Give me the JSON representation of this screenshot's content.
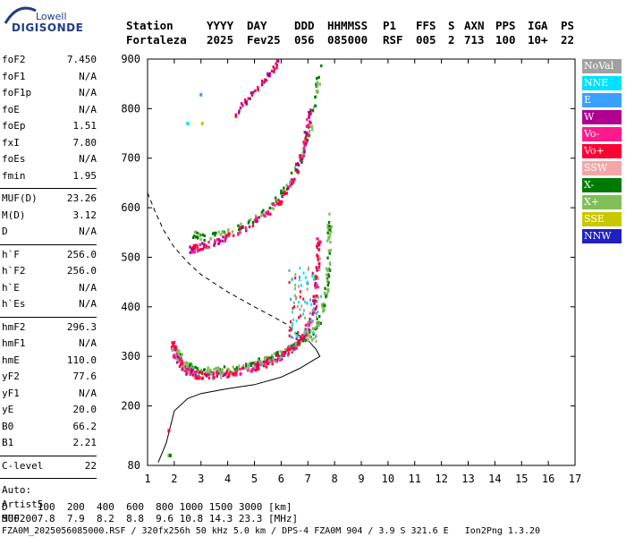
{
  "logo": {
    "brand_top": "Lowell",
    "brand_main": "DIGISONDE"
  },
  "header": {
    "labels": [
      "Station",
      "YYYY",
      "DAY",
      "DDD",
      "HHMMSS",
      "P1",
      "FFS",
      "S",
      "AXN",
      "PPS",
      "IGA",
      "PS"
    ],
    "values": [
      "Fortaleza",
      "2025",
      "Fev25",
      "056",
      "085000",
      "RSF",
      "005",
      "2",
      "713",
      "100",
      "10+",
      "22"
    ]
  },
  "params": {
    "group1": [
      {
        "label": "foF2",
        "value": "7.450"
      },
      {
        "label": "foF1",
        "value": "N/A"
      },
      {
        "label": "foF1p",
        "value": "N/A"
      },
      {
        "label": "foE",
        "value": "N/A"
      },
      {
        "label": "foEp",
        "value": "1.51"
      },
      {
        "label": "fxI",
        "value": "7.80"
      },
      {
        "label": "foEs",
        "value": "N/A"
      },
      {
        "label": "fmin",
        "value": "1.95"
      }
    ],
    "group2": [
      {
        "label": "MUF(D)",
        "value": "23.26"
      },
      {
        "label": "M(D)",
        "value": "3.12"
      },
      {
        "label": "D",
        "value": "N/A"
      }
    ],
    "group3": [
      {
        "label": "h`F",
        "value": "256.0"
      },
      {
        "label": "h`F2",
        "value": "256.0"
      },
      {
        "label": "h`E",
        "value": "N/A"
      },
      {
        "label": "h`Es",
        "value": "N/A"
      }
    ],
    "group4": [
      {
        "label": "hmF2",
        "value": "296.3"
      },
      {
        "label": "hmF1",
        "value": "N/A"
      },
      {
        "label": "hmE",
        "value": "110.0"
      },
      {
        "label": "yF2",
        "value": "77.6"
      },
      {
        "label": "yF1",
        "value": "N/A"
      },
      {
        "label": "yE",
        "value": "20.0"
      },
      {
        "label": "B0",
        "value": "66.2"
      },
      {
        "label": "B1",
        "value": "2.21"
      }
    ],
    "group5": [
      {
        "label": "C-level",
        "value": "22"
      }
    ],
    "scaling": [
      "Auto:",
      "Artist5",
      "500200"
    ]
  },
  "legend": [
    {
      "label": "NoVal",
      "color": "#a0a0a0"
    },
    {
      "label": "NNE",
      "color": "#00e0ff"
    },
    {
      "label": "E",
      "color": "#3aa0ff"
    },
    {
      "label": "W",
      "color": "#b00090"
    },
    {
      "label": "Vo-",
      "color": "#ff1a8c"
    },
    {
      "label": "Vo+",
      "color": "#ff0033"
    },
    {
      "label": "SSW",
      "color": "#f4a6a6"
    },
    {
      "label": "X-",
      "color": "#007a00"
    },
    {
      "label": "X+",
      "color": "#7fbf5a"
    },
    {
      "label": "SSE",
      "color": "#c8c800"
    },
    {
      "label": "NNW",
      "color": "#2020c0"
    }
  ],
  "footer": {
    "d_row": "D     100  200  400  600  800 1000 1500 3000 [km]",
    "muf_row": "MUF   7.8  7.9  8.2  8.8  9.6 10.8 14.3 23.3 [MHz]",
    "file_row": "FZA0M_2025056085000.RSF / 320fx256h 50 kHz 5.0 km / DPS-4 FZA0M 904 / 3.9 S 321.6 E   Ion2Png 1.3.20"
  },
  "chart_data": {
    "type": "scatter",
    "xlim": [
      1,
      17
    ],
    "ylim": [
      80,
      900
    ],
    "xticks": [
      1,
      2,
      3,
      4,
      5,
      6,
      7,
      8,
      9,
      10,
      11,
      12,
      13,
      14,
      15,
      16,
      17
    ],
    "yticks": [
      80,
      200,
      300,
      400,
      500,
      600,
      700,
      800,
      900
    ],
    "grid": false,
    "legend_position": "right",
    "profile_solid": [
      [
        1.4,
        86
      ],
      [
        1.7,
        125
      ],
      [
        2.0,
        190
      ],
      [
        2.5,
        215
      ],
      [
        3.0,
        225
      ],
      [
        4.0,
        235
      ],
      [
        5.0,
        243
      ],
      [
        6.0,
        258
      ],
      [
        6.7,
        276
      ],
      [
        7.2,
        292
      ],
      [
        7.45,
        300
      ],
      [
        7.3,
        315
      ],
      [
        7.05,
        330
      ],
      [
        6.6,
        345
      ]
    ],
    "profile_dashed": [
      [
        1.0,
        630
      ],
      [
        1.3,
        590
      ],
      [
        1.6,
        555
      ],
      [
        2.0,
        520
      ],
      [
        2.5,
        490
      ],
      [
        3.0,
        465
      ],
      [
        4.0,
        430
      ],
      [
        5.0,
        400
      ],
      [
        5.7,
        380
      ],
      [
        6.2,
        365
      ],
      [
        6.6,
        345
      ]
    ],
    "trace_o": [
      [
        1.95,
        325
      ],
      [
        2.1,
        295
      ],
      [
        2.4,
        275
      ],
      [
        2.8,
        262
      ],
      [
        3.3,
        260
      ],
      [
        4.0,
        265
      ],
      [
        4.7,
        272
      ],
      [
        5.4,
        285
      ],
      [
        6.0,
        300
      ],
      [
        6.5,
        320
      ],
      [
        6.9,
        345
      ],
      [
        7.2,
        390
      ],
      [
        7.35,
        450
      ],
      [
        7.42,
        540
      ]
    ],
    "trace_x": [
      [
        2.1,
        310
      ],
      [
        2.4,
        285
      ],
      [
        2.8,
        272
      ],
      [
        3.4,
        270
      ],
      [
        4.2,
        275
      ],
      [
        5.0,
        285
      ],
      [
        5.8,
        300
      ],
      [
        6.5,
        320
      ],
      [
        7.1,
        345
      ],
      [
        7.5,
        380
      ],
      [
        7.7,
        430
      ],
      [
        7.8,
        500
      ],
      [
        7.82,
        590
      ]
    ],
    "trace_o2": [
      [
        2.6,
        515
      ],
      [
        3.0,
        520
      ],
      [
        3.8,
        535
      ],
      [
        4.5,
        555
      ],
      [
        5.3,
        580
      ],
      [
        6.0,
        615
      ],
      [
        6.5,
        660
      ],
      [
        6.8,
        710
      ],
      [
        7.0,
        760
      ],
      [
        7.1,
        800
      ]
    ],
    "trace_x2": [
      [
        2.7,
        545
      ],
      [
        3.2,
        540
      ],
      [
        4.0,
        550
      ],
      [
        4.8,
        570
      ],
      [
        5.6,
        600
      ],
      [
        6.2,
        640
      ],
      [
        6.7,
        690
      ],
      [
        7.1,
        760
      ],
      [
        7.35,
        830
      ],
      [
        7.45,
        890
      ]
    ],
    "trace_o3": [
      [
        4.3,
        785
      ],
      [
        4.7,
        815
      ],
      [
        5.2,
        845
      ],
      [
        5.6,
        870
      ],
      [
        5.9,
        895
      ]
    ]
  }
}
